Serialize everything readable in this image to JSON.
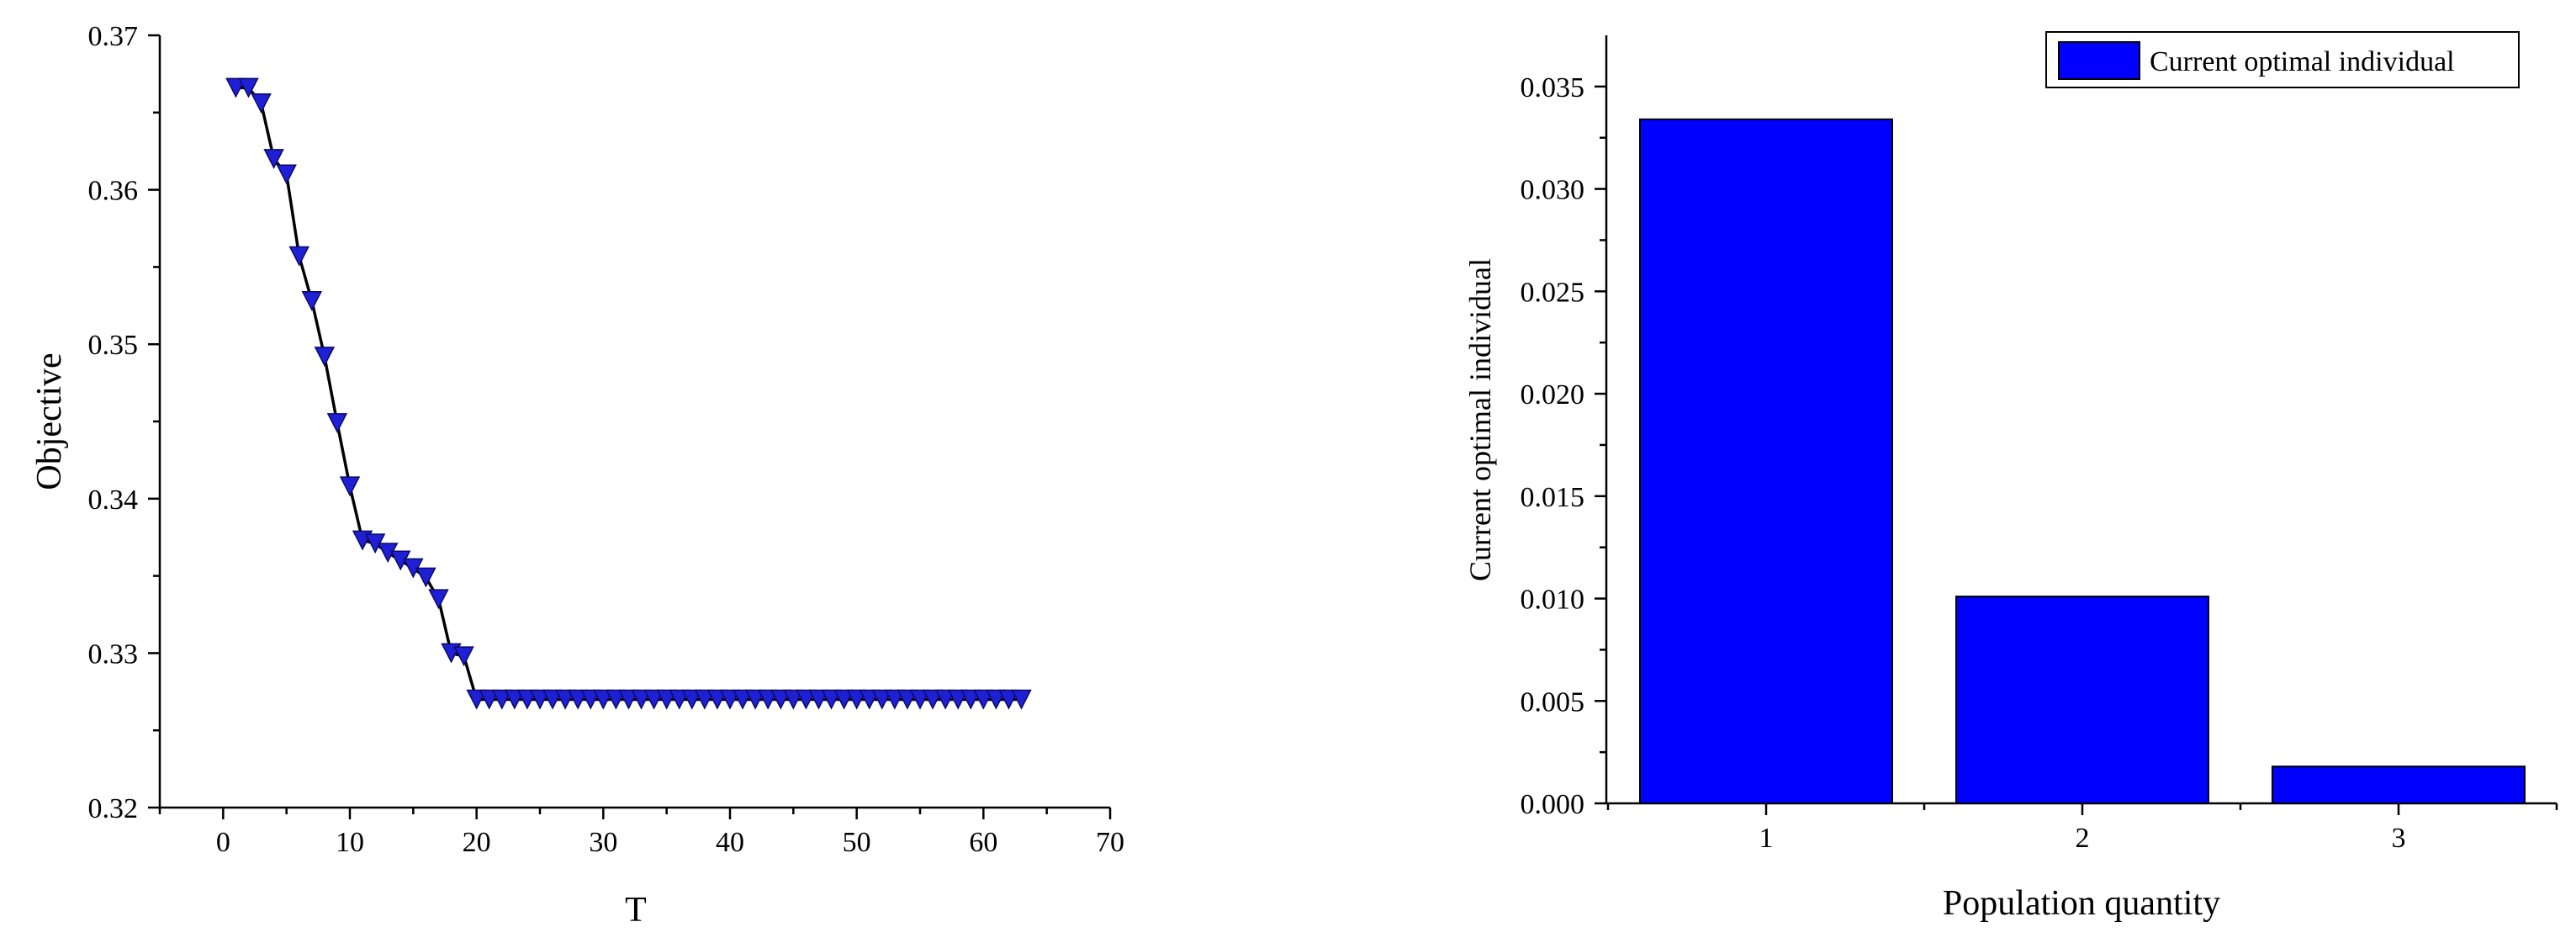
{
  "chart_data": [
    {
      "type": "line",
      "xlabel": "T",
      "ylabel": "Objective",
      "xlim": [
        -5,
        70
      ],
      "ylim": [
        0.32,
        0.37
      ],
      "xticks": [
        "0",
        "10",
        "20",
        "30",
        "40",
        "50",
        "60",
        "70"
      ],
      "yticks": [
        "0.32",
        "0.33",
        "0.34",
        "0.35",
        "0.36",
        "0.37"
      ],
      "marker": "down-triangle",
      "marker_color": "#1f1fd6",
      "line_color": "#000000",
      "series": [
        {
          "x": [
            1,
            2,
            3,
            4,
            5,
            6,
            7,
            8,
            9,
            10,
            11,
            12,
            13,
            14,
            15,
            16,
            17,
            18,
            19,
            20,
            21,
            22,
            23,
            24,
            25,
            26,
            27,
            28,
            29,
            30,
            31,
            32,
            33,
            34,
            35,
            36,
            37,
            38,
            39,
            40,
            41,
            42,
            43,
            44,
            45,
            46,
            47,
            48,
            49,
            50,
            51,
            52,
            53,
            54,
            55,
            56,
            57,
            58,
            59,
            60,
            61,
            62,
            63
          ],
          "y": [
            0.3666,
            0.3666,
            0.3656,
            0.362,
            0.361,
            0.3557,
            0.3528,
            0.3492,
            0.3449,
            0.3408,
            0.3373,
            0.3371,
            0.3365,
            0.336,
            0.3355,
            0.3349,
            0.3335,
            0.33,
            0.3298,
            0.327,
            0.327,
            0.327,
            0.327,
            0.327,
            0.327,
            0.327,
            0.327,
            0.327,
            0.327,
            0.327,
            0.327,
            0.327,
            0.327,
            0.327,
            0.327,
            0.327,
            0.327,
            0.327,
            0.327,
            0.327,
            0.327,
            0.327,
            0.327,
            0.327,
            0.327,
            0.327,
            0.327,
            0.327,
            0.327,
            0.327,
            0.327,
            0.327,
            0.327,
            0.327,
            0.327,
            0.327,
            0.327,
            0.327,
            0.327,
            0.327,
            0.327,
            0.327,
            0.327
          ]
        }
      ]
    },
    {
      "type": "bar",
      "xlabel": "Population quantity",
      "ylabel": "Current optimal individual",
      "categories": [
        "1",
        "2",
        "3"
      ],
      "ylim": [
        0,
        0.0375
      ],
      "yticks": [
        "0.000",
        "0.005",
        "0.010",
        "0.015",
        "0.020",
        "0.025",
        "0.030",
        "0.035"
      ],
      "bar_color": "#0000ff",
      "legend": {
        "label": "Current optimal individual",
        "position": "top-right"
      },
      "series": [
        {
          "name": "Current optimal individual",
          "values": [
            0.0334,
            0.0101,
            0.0018
          ]
        }
      ]
    }
  ]
}
